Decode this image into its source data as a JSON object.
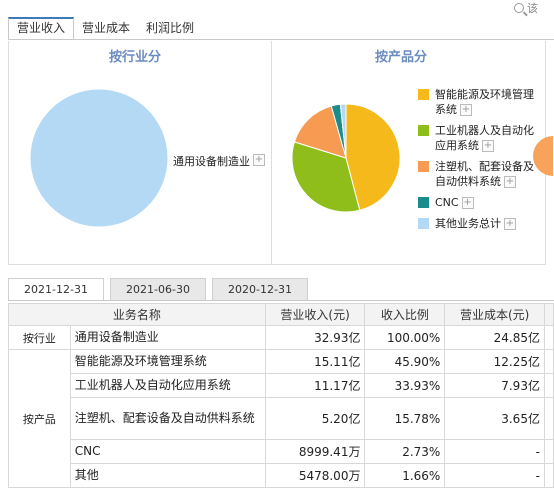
{
  "search": {
    "partial_label": "该"
  },
  "top_tabs": [
    {
      "label": "营业收入"
    },
    {
      "label": "营业成本"
    },
    {
      "label": "利润比例"
    }
  ],
  "industry_panel": {
    "title": "按行业分",
    "legend": [
      {
        "label": "通用设备制造业",
        "color": "#b3d9f5"
      }
    ]
  },
  "product_panel": {
    "title": "按产品分",
    "legend": [
      {
        "label": "智能能源及环境管理系统",
        "color": "#f5b91c"
      },
      {
        "label": "工业机器人及自动化应用系统",
        "color": "#8fbe1a"
      },
      {
        "label": "注塑机、配套设备及自动供料系统",
        "color": "#f79a52"
      },
      {
        "label": "CNC",
        "color": "#1a8c8c"
      },
      {
        "label": "其他业务总计",
        "color": "#b3d9f5"
      }
    ]
  },
  "chart_data": [
    {
      "type": "pie",
      "title": "按行业分",
      "categories": [
        "通用设备制造业"
      ],
      "values": [
        100.0
      ],
      "legend_position": "right"
    },
    {
      "type": "pie",
      "title": "按产品分",
      "categories": [
        "智能能源及环境管理系统",
        "工业机器人及自动化应用系统",
        "注塑机、配套设备及自动供料系统",
        "CNC",
        "其他业务总计"
      ],
      "values": [
        45.9,
        33.93,
        15.78,
        2.73,
        1.66
      ],
      "legend_position": "right"
    }
  ],
  "date_tabs": [
    {
      "label": "2021-12-31"
    },
    {
      "label": "2021-06-30"
    },
    {
      "label": "2020-12-31"
    }
  ],
  "table": {
    "headers": [
      "业务名称",
      "营业收入(元)",
      "收入比例",
      "营业成本(元)"
    ],
    "groups": {
      "industry": "按行业",
      "product": "按产品"
    },
    "rows": [
      {
        "name": "通用设备制造业",
        "revenue": "32.93亿",
        "ratio": "100.00%",
        "cost": "24.85亿"
      },
      {
        "name": "智能能源及环境管理系统",
        "revenue": "15.11亿",
        "ratio": "45.90%",
        "cost": "12.25亿"
      },
      {
        "name": "工业机器人及自动化应用系统",
        "revenue": "11.17亿",
        "ratio": "33.93%",
        "cost": "7.93亿"
      },
      {
        "name": "注塑机、配套设备及自动供料系统",
        "revenue": "5.20亿",
        "ratio": "15.78%",
        "cost": "3.65亿"
      },
      {
        "name": "CNC",
        "revenue": "8999.41万",
        "ratio": "2.73%",
        "cost": "-"
      },
      {
        "name": "其他",
        "revenue": "5478.00万",
        "ratio": "1.66%",
        "cost": "-"
      }
    ]
  }
}
